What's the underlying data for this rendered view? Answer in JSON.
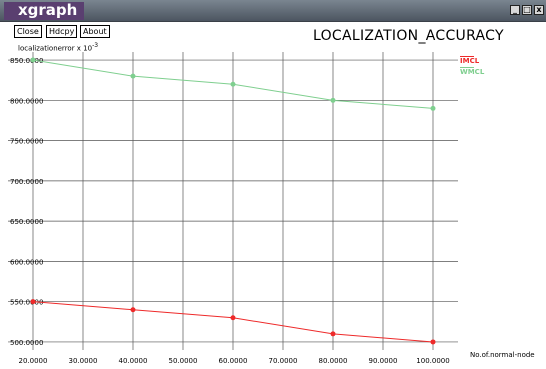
{
  "window": {
    "app_title": "xgraph",
    "buttons": {
      "minimize": "_",
      "maximize": "□",
      "close": "x"
    }
  },
  "toolbar": {
    "close_label": "Close",
    "hdcpy_label": "Hdcpy",
    "about_label": "About"
  },
  "colors": {
    "imcl": "#ee2a2a",
    "wmcl": "#7fcf8f",
    "grid": "#555555",
    "titlebar": "#4c5560"
  },
  "chart_data": {
    "type": "line",
    "title": "LOCALIZATION_ACCURACY",
    "ylabel_main": "localizationerror x 10",
    "ylabel_exp": "-3",
    "xlabel": "No.of.normal-node",
    "x": [
      20,
      40,
      60,
      80,
      100
    ],
    "xlim": [
      15,
      105
    ],
    "ylim": [
      490,
      860
    ],
    "x_ticks": [
      20,
      30,
      40,
      50,
      60,
      70,
      80,
      90,
      100
    ],
    "x_tick_labels": [
      "20.0000",
      "30.0000",
      "40.0000",
      "50.0000",
      "60.0000",
      "70.0000",
      "80.0000",
      "90.0000",
      "100.0000"
    ],
    "y_ticks": [
      500,
      550,
      600,
      650,
      700,
      750,
      800,
      850
    ],
    "y_tick_labels": [
      "500.0000",
      "550.0000",
      "600.0000",
      "650.0000",
      "700.0000",
      "750.0000",
      "800.0000",
      "850.0000"
    ],
    "grid": true,
    "legend_position": "top-right",
    "series": [
      {
        "name": "IMCL",
        "color": "#ee2a2a",
        "values": [
          550,
          540,
          530,
          510,
          500
        ]
      },
      {
        "name": "WMCL",
        "color": "#7fcf8f",
        "values": [
          850,
          830,
          820,
          800,
          790
        ]
      }
    ]
  }
}
